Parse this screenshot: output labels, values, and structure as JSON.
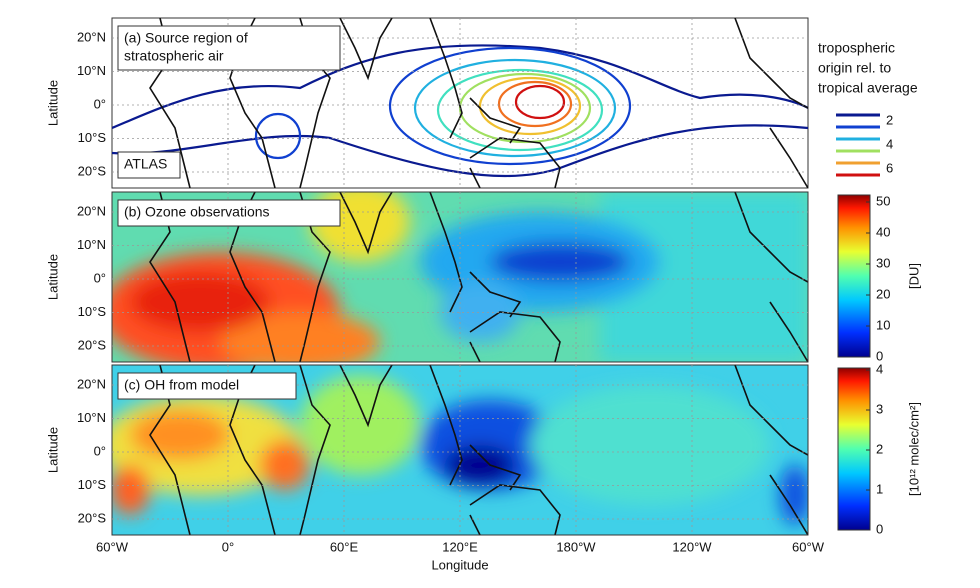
{
  "panels": [
    {
      "label": [
        "(a) Source region of",
        "stratospheric air"
      ],
      "inset": "ATLAS"
    },
    {
      "label": [
        "(b) Ozone observations"
      ]
    },
    {
      "label": [
        "(c) OH from model"
      ]
    }
  ],
  "y_axis": {
    "label": "Latitude",
    "ticks": [
      "20°N",
      "10°N",
      "0°",
      "10°S",
      "20°S"
    ]
  },
  "x_axis": {
    "label": "Longitude",
    "ticks": [
      "60°W",
      "0°",
      "60°E",
      "120°E",
      "180°W",
      "120°W",
      "60°W"
    ]
  },
  "legend": {
    "title": [
      "tropospheric",
      "origin rel. to",
      "tropical average"
    ],
    "labels": [
      "2",
      "4",
      "6"
    ]
  },
  "colorbars": [
    {
      "ticks": [
        "0",
        "10",
        "20",
        "30",
        "40",
        "50"
      ],
      "unit": "[DU]"
    },
    {
      "ticks": [
        "0",
        "1",
        "2",
        "3",
        "4"
      ],
      "unit": "[10¹² molec/cm²]"
    }
  ]
}
